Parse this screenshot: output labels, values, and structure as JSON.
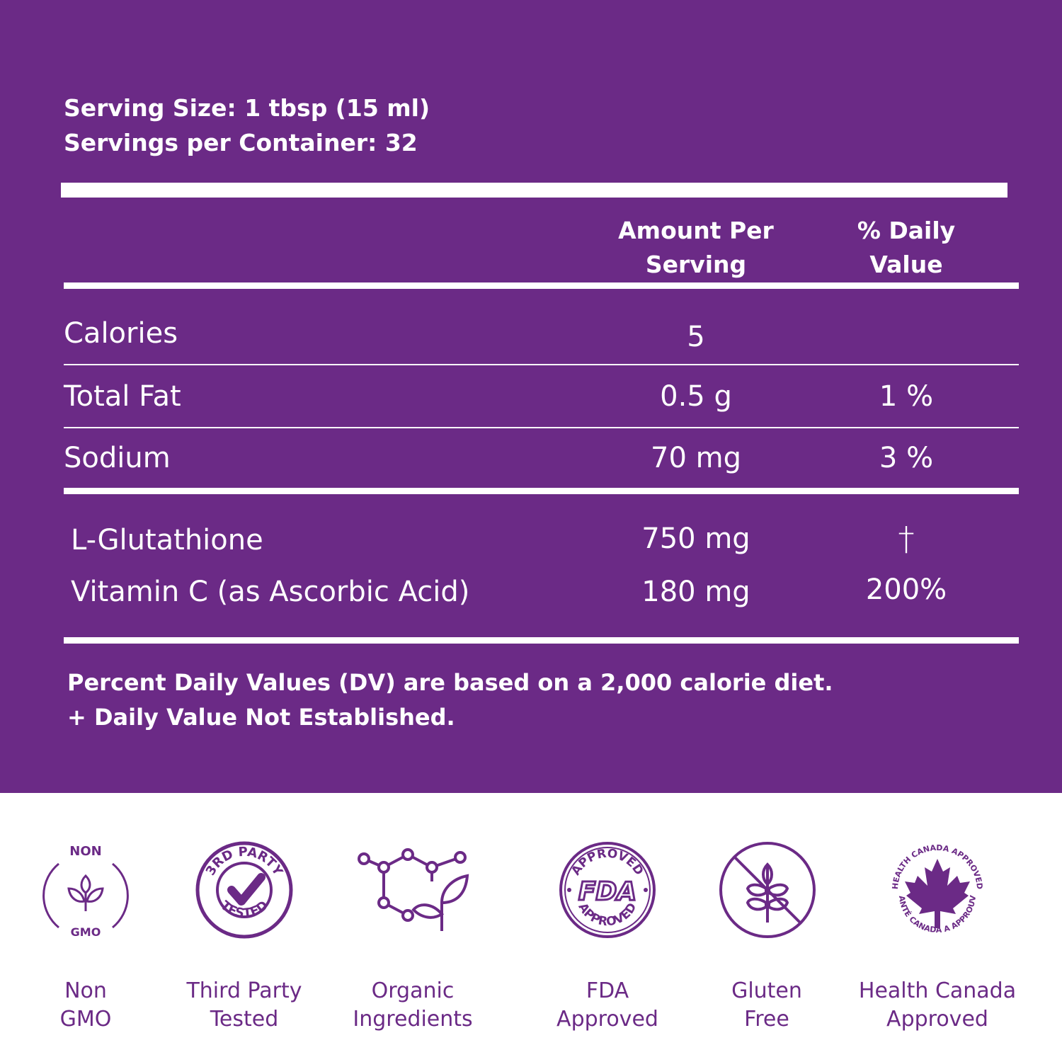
{
  "header": {
    "serving_size": "Serving Size: 1 tbsp (15 ml)",
    "servings_per_container": "Servings per Container: 32"
  },
  "table": {
    "col_amount_line1": "Amount Per",
    "col_amount_line2": "Serving",
    "col_dv_line1": "% Daily",
    "col_dv_line2": "Value",
    "rows": [
      {
        "name": "Calories",
        "amount": "5",
        "dv": ""
      },
      {
        "name": "Total Fat",
        "amount": "0.5 g",
        "dv": "1 %"
      },
      {
        "name": "Sodium",
        "amount": "70 mg",
        "dv": "3 %"
      }
    ],
    "supplements": [
      {
        "name": "L-Glutathione",
        "amount": "750 mg",
        "dv": "†"
      },
      {
        "name": "Vitamin C (as Ascorbic Acid)",
        "amount": "180 mg",
        "dv": "200%"
      }
    ]
  },
  "footnotes": {
    "line1": "Percent Daily Values (DV) are based on a 2,000 calorie diet.",
    "line2": "+ Daily Value Not Established."
  },
  "badges": [
    {
      "icon": "non-gmo-icon",
      "label_line1": "Non",
      "label_line2": "GMO",
      "icon_text_top": "NON",
      "icon_text_bottom": "GMO"
    },
    {
      "icon": "third-party-tested-icon",
      "label_line1": "Third Party",
      "label_line2": "Tested",
      "icon_text_top": "3RD PARTY",
      "icon_text_bottom": "TESTED"
    },
    {
      "icon": "organic-molecule-leaf-icon",
      "label_line1": "Organic",
      "label_line2": "Ingredients"
    },
    {
      "icon": "fda-approved-icon",
      "label_line1": "FDA",
      "label_line2": "Approved",
      "icon_text_top": "APPROVED",
      "icon_text_mid": "FDA",
      "icon_text_bottom": "APPROVED"
    },
    {
      "icon": "gluten-free-wheat-icon",
      "label_line1": "Gluten",
      "label_line2": "Free"
    },
    {
      "icon": "health-canada-maple-leaf-icon",
      "label_line1": "Health Canada",
      "label_line2": "Approved",
      "icon_text_top": "HEALTH CANADA APPROVED",
      "icon_text_bottom": "SANTÉ CANADA A APPROUVÉ"
    }
  ],
  "colors": {
    "panel_background": "#6b2a86",
    "accent": "#6b2a86",
    "text_on_panel": "#ffffff"
  }
}
